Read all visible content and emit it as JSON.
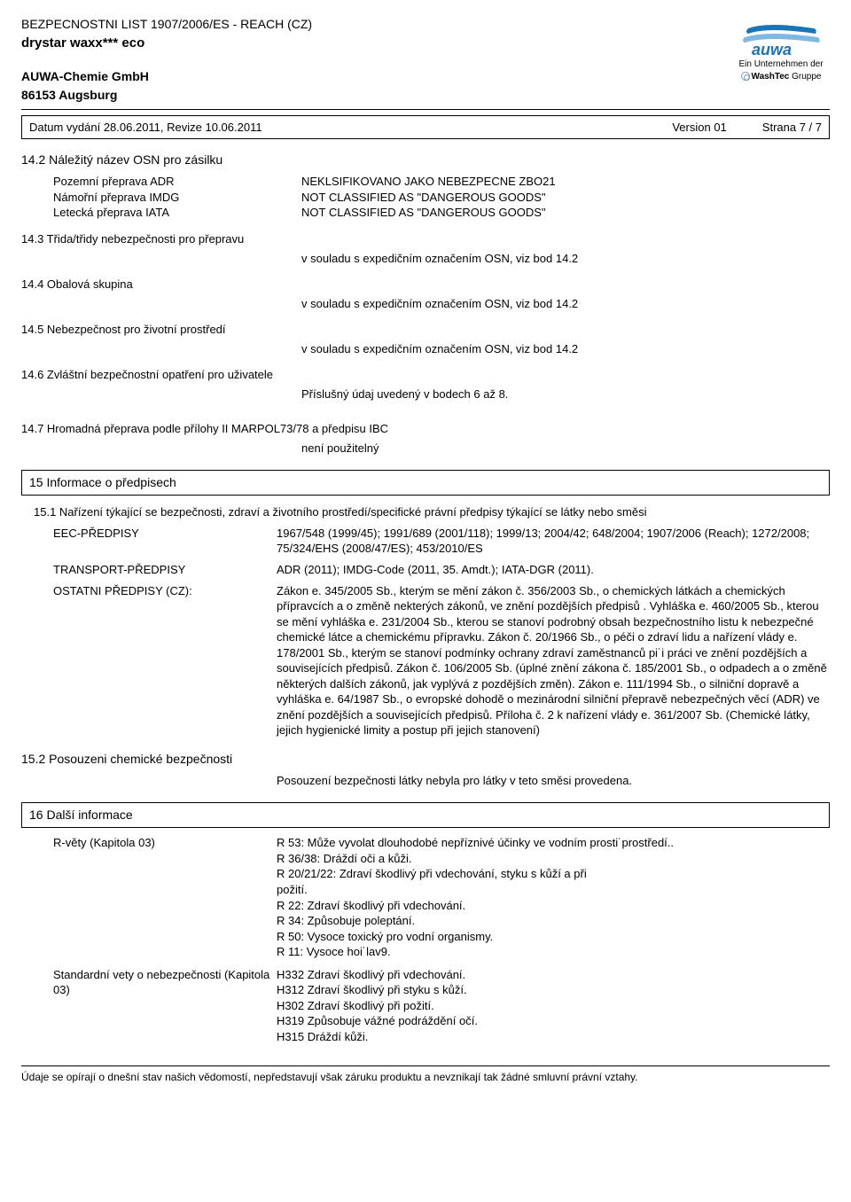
{
  "header": {
    "line1": "BEZPECNOSTNI LIST 1907/2006/ES - REACH (CZ)",
    "product": "drystar waxx*** eco",
    "company": "AUWA-Chemie GmbH",
    "city": "86153 Augsburg",
    "logo_text": "auwa",
    "logo_sub1": "Ein Unternehmen der",
    "logo_sub2_brand": "WashTec",
    "logo_sub2_suffix": " Gruppe",
    "logo_color_top": "#1a74b8",
    "logo_color_bottom": "#7fb8e0"
  },
  "meta": {
    "left": "Datum vydání 28.06.2011, Revize 10.06.2011",
    "version": "Version 01",
    "page": "Strana 7 / 7"
  },
  "s142": {
    "title": "14.2 Náležitý název OSN pro zásilku",
    "rows": [
      {
        "lbl": "Pozemní přeprava ADR",
        "val": "NEKLSIFIKOVANO JAKO NEBEZPECNE ZBO21"
      },
      {
        "lbl": "Námořní přeprava IMDG",
        "val": "NOT CLASSIFIED AS \"DANGEROUS GOODS\""
      },
      {
        "lbl": "Letecká přeprava IATA",
        "val": "NOT CLASSIFIED AS \"DANGEROUS GOODS\""
      }
    ]
  },
  "s143": {
    "title": "14.3 Třida/třidy nebezpečnosti pro přepravu",
    "val": "v souladu s expedičním označením OSN, viz bod 14.2"
  },
  "s144": {
    "title": "14.4 Obalová skupina",
    "val": "v souladu s expedičním označením OSN, viz bod 14.2"
  },
  "s145": {
    "title": "14.5 Nebezpečnost pro životní prostředí",
    "val": "v souladu s expedičním označením OSN, viz bod 14.2"
  },
  "s146": {
    "title": "14.6 Zvláštní bezpečnostní opatření pro uživatele",
    "val": "Příslušný údaj uvedený v bodech 6 až 8."
  },
  "s147": {
    "title": "14.7 Hromadná přeprava podle přílohy II MARPOL73/78 a předpisu IBC",
    "val": "není použitelný"
  },
  "s15": {
    "box": "15 Informace o předpisech",
    "s151": "15.1 Nařízení týkající se bezpečnosti, zdraví a životního prostředí/specifické právní předpisy týkající se látky nebo směsi",
    "rows": [
      {
        "lbl": "EEC-PŘEDPISY",
        "val": "1967/548 (1999/45); 1991/689 (2001/118); 1999/13; 2004/42; 648/2004; 1907/2006 (Reach); 1272/2008; 75/324/EHS (2008/47/ES); 453/2010/ES"
      },
      {
        "lbl": "TRANSPORT-PŘEDPISY",
        "val": "ADR (2011); IMDG-Code (2011, 35. Amdt.); IATA-DGR (2011)."
      },
      {
        "lbl": "OSTATNI PŘEDPISY (CZ):",
        "val": "Zákon e. 345/2005 Sb., kterým se mění zákon č. 356/2003 Sb., o chemických látkách a chemických přípravcích  a o změně nekterých zákonů, ve znění pozdějších předpisů . Vyhláška e. 460/2005 Sb., kterou se mění vyhláška e. 231/2004 Sb., kterou se stanoví podrobný obsah bezpečnostního listu k nebezpečné chemické látce a chemickému přípravku. Zákon č. 20/1966 Sb., o péči o zdraví lidu a nařízení vlády e. 178/2001 Sb., kterým se stanoví podmínky ochrany zdraví zaměstnanců pi˙i práci ve znění pozdějších a souvisejících předpisů. Zákon č. 106/2005 Sb. (úplné znění zákona č. 185/2001 Sb., o odpadech a o změně některých dalších zákonů, jak vyplývá z pozdějších změn). Zákon e. 111/1994 Sb., o silniční dopravě a vyhláška e. 64/1987 Sb., o evropské dohodě o mezinárodní silniční přepravě nebezpečných věcí (ADR) ve znění pozdějších a souvisejících předpisů. Příloha č. 2 k nařízení vlády e. 361/2007 Sb. (Chemické látky, jejich hygienické limity a postup při jejich stanovení)"
      }
    ],
    "s152_title": "15.2 Posouzeni chemické bezpečnosti",
    "s152_val": "Posouzení bezpečnosti látky nebyla pro látky v teto směsi provedena."
  },
  "s16": {
    "box": "16 Další informace",
    "blocks": [
      {
        "lbl": "R-věty (Kapitola 03)",
        "lines": [
          "R 53: Může vyvolat dlouhodobé nepříznivé účinky ve vodním prosti˙prostředí..",
          "R 36/38: Dráždí oči a kůži.",
          "R 20/21/22: Zdraví škodlivý  při  vdechování, styku  s kůží a při",
          "požití.",
          " R 22: Zdraví škodlivý při vdechování.",
          "R 34: Způsobuje poleptání.",
          "R 50: Vysoce toxický pro vodní organismy.",
          "R 11: Vysoce hoi˙lav9."
        ]
      },
      {
        "lbl": "Standardní vety o nebezpečnosti (Kapitola 03)",
        "lines": [
          " H332 Zdraví  škodlivý  při  vdechování.",
          "H312 Zdraví škodlivý při styku s  kůží.",
          "H302 Zdraví škodlivý při požití.",
          "H319 Způsobuje vážné podráždění očí.",
          "H315 Dráždí kůži."
        ]
      }
    ]
  },
  "footer": "Údaje se opírají o dnešní stav našich vědomostí, nepředstavují však záruku produktu a nevznikají tak žádné smluvní právní vztahy."
}
